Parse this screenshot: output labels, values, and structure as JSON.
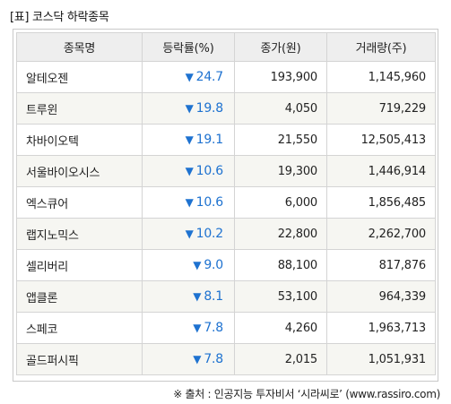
{
  "title": "[표] 코스닥 하락종목",
  "columns": [
    "종목명",
    "등락률(%)",
    "종가(원)",
    "거래량(주)"
  ],
  "down_marker": "▼",
  "rows": [
    {
      "name": "알테오젠",
      "rate": "24.7",
      "close": "193,900",
      "volume": "1,145,960"
    },
    {
      "name": "트루윈",
      "rate": "19.8",
      "close": "4,050",
      "volume": "719,229"
    },
    {
      "name": "차바이오텍",
      "rate": "19.1",
      "close": "21,550",
      "volume": "12,505,413"
    },
    {
      "name": "서울바이오시스",
      "rate": "10.6",
      "close": "19,300",
      "volume": "1,446,914"
    },
    {
      "name": "엑스큐어",
      "rate": "10.6",
      "close": "6,000",
      "volume": "1,856,485"
    },
    {
      "name": "랩지노믹스",
      "rate": "10.2",
      "close": "22,800",
      "volume": "2,262,700"
    },
    {
      "name": "셀리버리",
      "rate": "9.0",
      "close": "88,100",
      "volume": "817,876"
    },
    {
      "name": "앱클론",
      "rate": "8.1",
      "close": "53,100",
      "volume": "964,339"
    },
    {
      "name": "스페코",
      "rate": "7.8",
      "close": "4,260",
      "volume": "1,963,713"
    },
    {
      "name": "골드퍼시픽",
      "rate": "7.8",
      "close": "2,015",
      "volume": "1,051,931"
    }
  ],
  "footer": "※ 출처 : 인공지능 투자비서 ‘시라씨로’ (www.rassiro.com)",
  "colors": {
    "down": "#1e72d0",
    "header_bg": "#eeeeee",
    "alt_row_bg": "#f6f6f2",
    "border": "#d4d4d4"
  }
}
